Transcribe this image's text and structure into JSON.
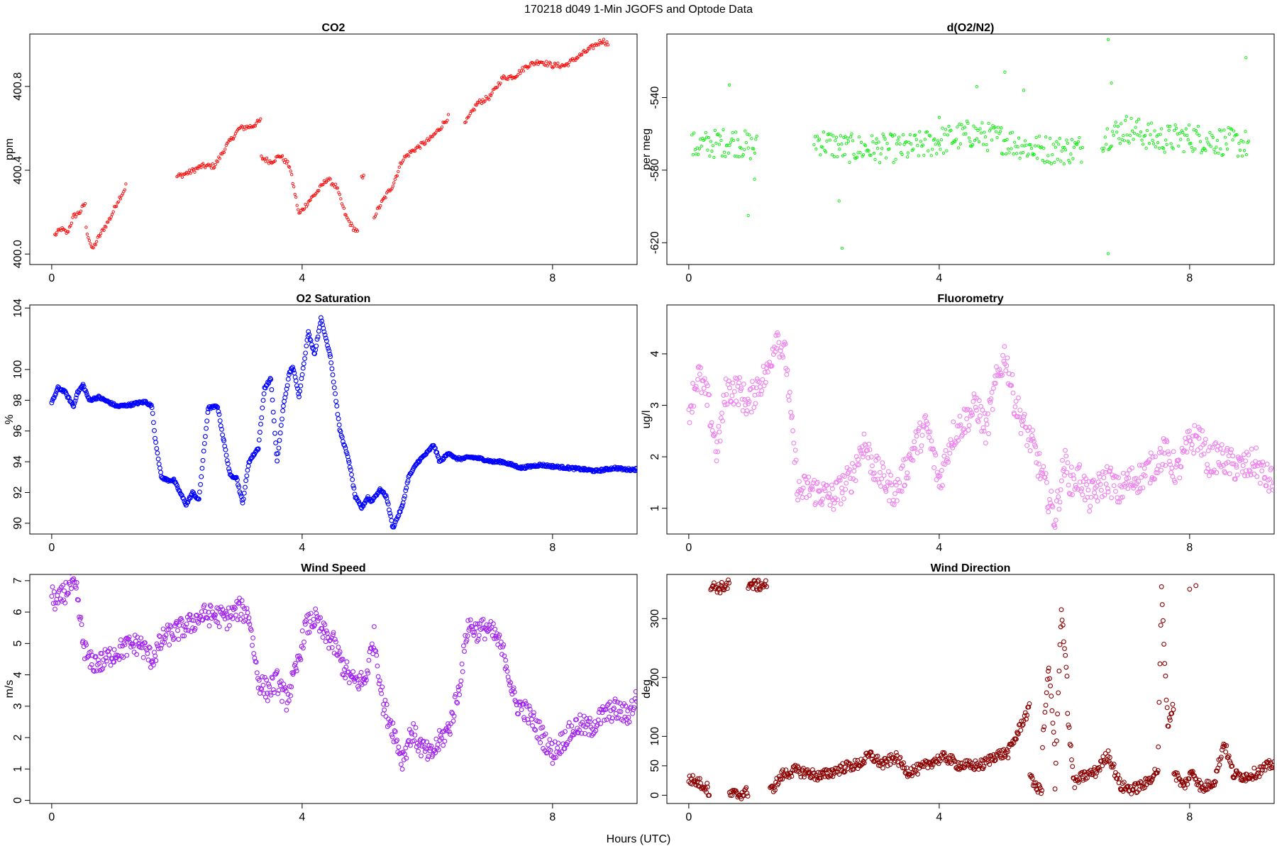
{
  "figure": {
    "title": "170218   d049   1-Min  JGOFS and Optode Data",
    "xlabel": "Hours (UTC)"
  },
  "chart_data": [
    {
      "id": "co2",
      "type": "scatter",
      "title": "CO2",
      "ylabel": "ppm",
      "color": "#ff0000",
      "marker": "small",
      "xlim": [
        -0.35,
        9.35
      ],
      "ylim": [
        399.95,
        401.05
      ],
      "xticks": [
        0,
        4,
        8
      ],
      "yticks": [
        400.0,
        400.4,
        400.8
      ],
      "ytick_labels": [
        "400.0",
        "400.4",
        "400.8"
      ],
      "segments": [
        {
          "x": [
            0.05,
            0.15,
            0.25,
            0.35,
            0.45,
            0.55
          ],
          "y": [
            400.09,
            400.12,
            400.1,
            400.18,
            400.2,
            400.25
          ]
        },
        {
          "x": [
            0.55,
            0.65,
            0.75,
            0.85,
            0.95,
            1.05,
            1.15,
            1.2
          ],
          "y": [
            400.12,
            400.02,
            400.08,
            400.13,
            400.18,
            400.25,
            400.3,
            400.34
          ]
        },
        {
          "x": [
            2.0,
            2.2,
            2.4,
            2.6,
            2.8,
            3.0,
            3.2,
            3.35
          ],
          "y": [
            400.37,
            400.39,
            400.42,
            400.42,
            400.52,
            400.6,
            400.61,
            400.64
          ]
        },
        {
          "x": [
            3.35,
            3.5,
            3.65,
            3.8,
            3.95,
            4.1,
            4.25,
            4.4,
            4.55,
            4.7,
            4.8,
            4.9
          ],
          "y": [
            400.46,
            400.44,
            400.47,
            400.42,
            400.19,
            400.25,
            400.3,
            400.36,
            400.32,
            400.18,
            400.13,
            400.1
          ]
        },
        {
          "x": [
            4.95,
            5.0
          ],
          "y": [
            400.36,
            400.37
          ]
        },
        {
          "x": [
            5.15,
            5.3,
            5.45,
            5.6,
            5.75,
            5.9,
            6.05,
            6.2,
            6.35
          ],
          "y": [
            400.18,
            400.26,
            400.33,
            400.45,
            400.49,
            400.52,
            400.55,
            400.6,
            400.66
          ]
        },
        {
          "x": [
            6.6,
            6.8,
            7.0,
            7.2,
            7.4,
            7.6,
            7.8,
            8.0,
            8.2,
            8.4,
            8.6,
            8.8,
            8.9
          ],
          "y": [
            400.62,
            400.72,
            400.75,
            400.84,
            400.85,
            400.9,
            400.92,
            400.9,
            400.9,
            400.94,
            400.98,
            401.02,
            401.0
          ]
        }
      ],
      "noise": 0.012
    },
    {
      "id": "o2n2",
      "type": "scatter",
      "title": "d(O2/N2)",
      "ylabel": "per meg",
      "color": "#00ee00",
      "marker": "small",
      "xlim": [
        -0.35,
        9.35
      ],
      "ylim": [
        -632,
        -505
      ],
      "xticks": [
        0,
        4,
        8
      ],
      "yticks": [
        -620,
        -580,
        -540
      ],
      "ytick_labels": [
        "-620",
        "-580",
        "-540"
      ],
      "segments": [
        {
          "x": [
            0.05,
            0.3,
            0.5,
            0.7,
            0.9,
            1.1
          ],
          "y": [
            -567,
            -566,
            -565,
            -564,
            -566,
            -568
          ]
        },
        {
          "x": [
            2.0,
            2.5,
            3.0,
            3.5,
            4.0,
            4.5,
            5.0,
            5.5,
            6.0,
            6.3
          ],
          "y": [
            -563,
            -568,
            -568,
            -568,
            -564,
            -560,
            -563,
            -568,
            -569,
            -568
          ]
        },
        {
          "x": [
            6.6,
            7.0,
            7.5,
            8.0,
            8.5,
            8.95
          ],
          "y": [
            -562,
            -557,
            -563,
            -562,
            -564,
            -566
          ]
        }
      ],
      "noise": 8,
      "outliers": {
        "x": [
          0.65,
          0.95,
          1.05,
          2.4,
          2.45,
          4.0,
          4.6,
          5.05,
          5.35,
          6.7,
          6.7,
          6.75,
          8.9
        ],
        "y": [
          -533,
          -605,
          -585,
          -597,
          -623,
          -551,
          -534,
          -526,
          -536,
          -508,
          -626,
          -532,
          -518
        ]
      }
    },
    {
      "id": "o2sat",
      "type": "scatter",
      "title": "O2 Saturation",
      "ylabel": "%",
      "color": "#0000ff",
      "marker": "large",
      "xlim": [
        -0.35,
        9.35
      ],
      "ylim": [
        89.3,
        104.2
      ],
      "xticks": [
        0,
        4,
        8
      ],
      "yticks": [
        90,
        92,
        94,
        96,
        98,
        100,
        104
      ],
      "ytick_labels": [
        "90",
        "92",
        "94",
        "96",
        "98",
        "100",
        "104"
      ],
      "segments": [
        {
          "x": [
            0.0,
            0.1,
            0.2,
            0.35,
            0.4,
            0.5,
            0.6,
            0.75,
            0.9,
            1.05,
            1.25,
            1.35,
            1.5,
            1.6,
            1.65,
            1.75,
            1.85,
            1.95,
            2.15,
            2.25,
            2.35,
            2.5,
            2.65,
            2.75,
            2.85,
            2.95,
            3.05,
            3.15,
            3.3,
            3.4,
            3.5,
            3.6,
            3.7,
            3.8,
            3.85,
            3.95,
            4.1,
            4.2,
            4.3,
            4.45,
            4.6,
            4.75,
            4.85,
            4.95,
            5.05,
            5.1,
            5.25,
            5.35,
            5.45,
            5.6,
            5.7,
            5.85,
            6.0,
            6.1,
            6.2,
            6.35,
            6.45,
            6.55,
            6.7,
            6.85,
            7.05,
            7.2,
            7.35,
            7.5,
            7.65,
            7.8,
            8.0,
            8.25,
            8.5,
            8.7,
            8.85,
            9.0,
            9.15,
            9.35
          ],
          "y": [
            97.8,
            98.8,
            98.6,
            97.6,
            98.4,
            99.0,
            98.0,
            98.2,
            97.9,
            97.6,
            97.7,
            97.8,
            97.9,
            97.6,
            95.6,
            93.0,
            92.8,
            92.8,
            91.2,
            92.0,
            91.5,
            97.5,
            97.6,
            95.3,
            93.1,
            93.0,
            91.3,
            94.0,
            94.9,
            98.8,
            99.4,
            94.0,
            97.6,
            99.8,
            100.2,
            98.3,
            102.4,
            101.0,
            103.3,
            100.9,
            96.1,
            94.0,
            91.7,
            91.0,
            91.7,
            91.4,
            92.2,
            91.7,
            89.7,
            91.1,
            93.0,
            94.0,
            94.6,
            95.1,
            94.0,
            94.6,
            94.2,
            94.2,
            94.3,
            94.2,
            94.0,
            94.0,
            93.8,
            93.6,
            93.7,
            93.8,
            93.7,
            93.6,
            93.5,
            93.4,
            93.5,
            93.6,
            93.5,
            93.5
          ]
        }
      ],
      "noise": 0.08
    },
    {
      "id": "fluoro",
      "type": "scatter",
      "title": "Fluorometry",
      "ylabel": "ug/l",
      "color": "#ee82ee",
      "marker": "large",
      "xlim": [
        -0.35,
        9.35
      ],
      "ylim": [
        0.5,
        4.95
      ],
      "xticks": [
        0,
        4,
        8
      ],
      "yticks": [
        1,
        2,
        3,
        4
      ],
      "ytick_labels": [
        "1",
        "2",
        "3",
        "4"
      ],
      "segments": [
        {
          "x": [
            0.0,
            0.15,
            0.3,
            0.45,
            0.6,
            0.8,
            0.95,
            1.1,
            1.25,
            1.4,
            1.55,
            1.65,
            1.75,
            1.9,
            2.1,
            2.3,
            2.45,
            2.6,
            2.8,
            2.95,
            3.15,
            3.3,
            3.45,
            3.6,
            3.8,
            4.0,
            4.2,
            4.4,
            4.6,
            4.75,
            4.9,
            5.05,
            5.2,
            5.35,
            5.5,
            5.6,
            5.75,
            5.85,
            6.0,
            6.1,
            6.25,
            6.4,
            6.55,
            6.7,
            6.85,
            7.0,
            7.2,
            7.4,
            7.6,
            7.8,
            8.0,
            8.15,
            8.3,
            8.45,
            8.6,
            8.75,
            8.9,
            9.05,
            9.2,
            9.35
          ],
          "y": [
            2.9,
            3.6,
            3.1,
            2.1,
            3.3,
            3.3,
            3.0,
            3.4,
            3.6,
            4.4,
            3.9,
            2.5,
            1.3,
            1.4,
            1.3,
            1.2,
            1.4,
            1.6,
            2.3,
            1.8,
            1.5,
            1.3,
            1.7,
            2.2,
            2.6,
            1.5,
            2.4,
            2.7,
            3.0,
            2.5,
            3.4,
            4.0,
            3.1,
            2.6,
            2.2,
            1.8,
            1.2,
            0.8,
            1.9,
            1.5,
            1.6,
            1.2,
            1.4,
            1.6,
            1.3,
            1.5,
            1.6,
            1.8,
            2.1,
            1.7,
            2.3,
            2.4,
            1.9,
            2.0,
            1.9,
            1.8,
            1.8,
            1.9,
            1.6,
            1.5
          ]
        }
      ],
      "noise": 0.3
    },
    {
      "id": "wspd",
      "type": "scatter",
      "title": "Wind Speed",
      "ylabel": "m/s",
      "color": "#a020f0",
      "marker": "large",
      "xlim": [
        -0.35,
        9.35
      ],
      "ylim": [
        -0.1,
        7.2
      ],
      "xticks": [
        0,
        4,
        8
      ],
      "yticks": [
        0,
        1,
        2,
        3,
        4,
        5,
        6,
        7
      ],
      "ytick_labels": [
        "0",
        "1",
        "2",
        "3",
        "4",
        "5",
        "6",
        "7"
      ],
      "segments": [
        {
          "x": [
            0.0,
            0.1,
            0.2,
            0.3,
            0.4,
            0.5,
            0.6,
            0.8,
            1.0,
            1.2,
            1.4,
            1.6,
            1.8,
            2.0,
            2.2,
            2.4,
            2.6,
            2.8,
            3.0,
            3.15,
            3.3,
            3.45,
            3.6,
            3.75,
            3.9,
            4.05,
            4.2,
            4.35,
            4.5,
            4.65,
            4.8,
            5.0,
            5.15,
            5.3,
            5.45,
            5.6,
            5.75,
            5.9,
            6.05,
            6.2,
            6.35,
            6.5,
            6.65,
            6.8,
            6.95,
            7.1,
            7.25,
            7.4,
            7.55,
            7.7,
            7.85,
            8.0,
            8.2,
            8.4,
            8.6,
            8.8,
            9.0,
            9.2,
            9.35
          ],
          "y": [
            6.5,
            6.3,
            6.6,
            6.9,
            6.6,
            5.0,
            4.4,
            4.4,
            4.7,
            4.9,
            5.0,
            4.5,
            5.2,
            5.4,
            5.6,
            5.9,
            5.9,
            5.8,
            6.1,
            5.9,
            3.8,
            3.5,
            3.8,
            3.2,
            4.1,
            5.5,
            5.8,
            5.3,
            5.0,
            4.3,
            3.8,
            3.8,
            5.2,
            3.0,
            2.3,
            1.3,
            2.2,
            1.7,
            1.4,
            1.9,
            2.3,
            3.5,
            5.6,
            5.4,
            5.5,
            5.2,
            4.5,
            3.1,
            2.9,
            2.5,
            2.0,
            1.5,
            2.0,
            2.4,
            2.3,
            2.7,
            2.9,
            2.7,
            3.3
          ]
        }
      ],
      "noise": 0.35
    },
    {
      "id": "wdir",
      "type": "scatter",
      "title": "Wind Direction",
      "ylabel": "deg",
      "color": "#8b0000",
      "marker": "large",
      "xlim": [
        -0.35,
        9.35
      ],
      "ylim": [
        -14,
        375
      ],
      "xticks": [
        0,
        4,
        8
      ],
      "yticks": [
        0,
        50,
        100,
        200,
        300
      ],
      "ytick_labels": [
        "0",
        "50",
        "100",
        "200",
        "300"
      ],
      "segments": [
        {
          "x": [
            0.0,
            0.15,
            0.3,
            0.33
          ],
          "y": [
            28,
            22,
            12,
            4
          ]
        },
        {
          "x": [
            0.35,
            0.5,
            0.65
          ],
          "y": [
            355,
            352,
            358
          ]
        },
        {
          "x": [
            0.65,
            0.8,
            0.95
          ],
          "y": [
            2,
            1,
            6
          ]
        },
        {
          "x": [
            0.95,
            1.1,
            1.25
          ],
          "y": [
            358,
            356,
            359
          ]
        },
        {
          "x": [
            1.3,
            1.5,
            1.7,
            1.9,
            2.1,
            2.3,
            2.5,
            2.7,
            2.9,
            3.1,
            3.3,
            3.5,
            3.7,
            3.9,
            4.1,
            4.3,
            4.5,
            4.7,
            4.9,
            5.1,
            5.25,
            5.35,
            5.45
          ],
          "y": [
            6,
            35,
            42,
            38,
            32,
            40,
            48,
            52,
            68,
            52,
            65,
            40,
            45,
            58,
            65,
            52,
            50,
            52,
            68,
            72,
            105,
            130,
            148
          ]
        },
        {
          "x": [
            5.45,
            5.55,
            5.65
          ],
          "y": [
            40,
            10,
            12
          ]
        },
        {
          "x": [
            5.65,
            5.75,
            5.85
          ],
          "y": [
            85,
            220,
            70
          ]
        },
        {
          "x": [
            5.85,
            5.95,
            6.05
          ],
          "y": [
            10,
            320,
            190
          ]
        },
        {
          "x": [
            6.05,
            6.15,
            6.3,
            6.5,
            6.7,
            6.9,
            7.1,
            7.3,
            7.5
          ],
          "y": [
            140,
            20,
            32,
            40,
            70,
            15,
            10,
            20,
            45
          ]
        },
        {
          "x": [
            7.5,
            7.55,
            7.65,
            7.75
          ],
          "y": [
            80,
            350,
            120,
            155
          ]
        },
        {
          "x": [
            7.75,
            7.9,
            8.05,
            8.2,
            8.4,
            8.55,
            8.7,
            8.9,
            9.1,
            9.35
          ],
          "y": [
            40,
            15,
            40,
            10,
            25,
            90,
            35,
            32,
            40,
            55
          ]
        }
      ],
      "noise": 9,
      "outliers": {
        "x": [
          8.0,
          8.1
        ],
        "y": [
          350,
          356
        ]
      }
    }
  ]
}
